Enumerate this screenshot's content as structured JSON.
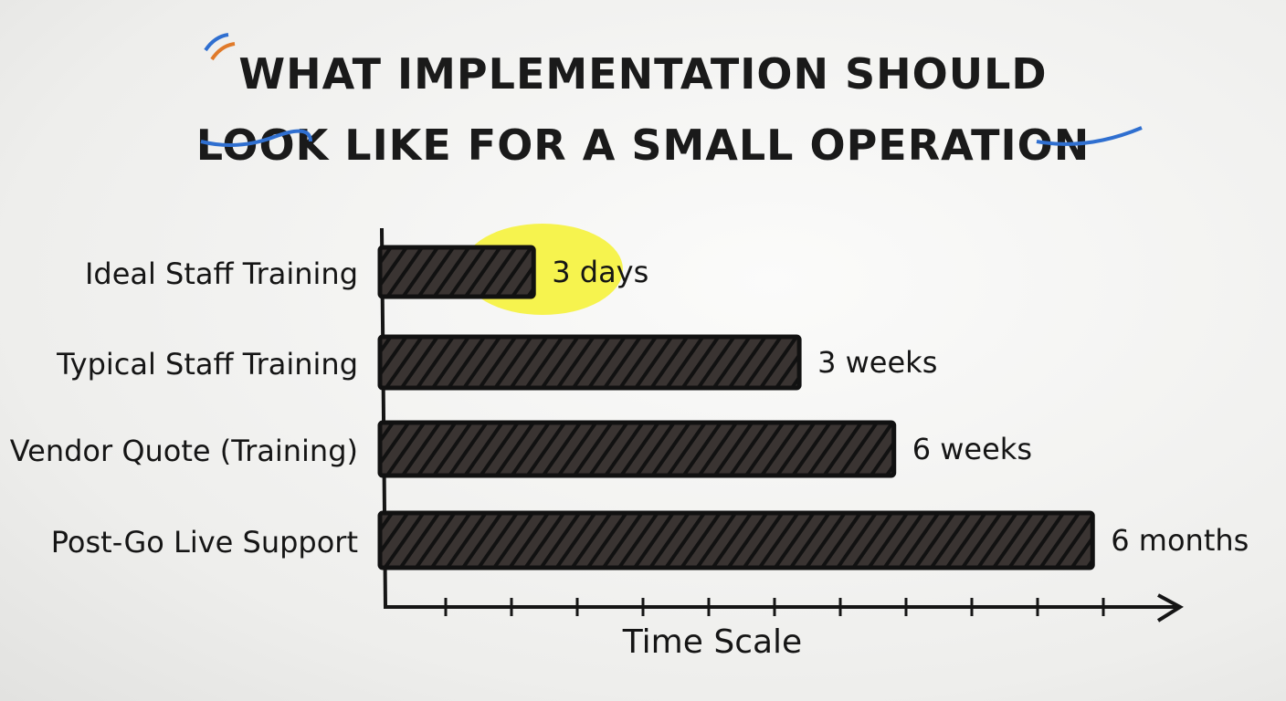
{
  "chart_data": {
    "type": "hbar",
    "title": "WHAT IMPLEMENTATION SHOULD LOOK LIKE FOR A SMALL OPERATION",
    "xlabel": "Time Scale",
    "categories": [
      "Ideal Staff Training",
      "Typical Staff Training",
      "Vendor Quote (Training)",
      "Post-Go Live Support"
    ],
    "values": [
      3,
      21,
      42,
      180
    ],
    "value_labels": [
      "3 days",
      "3 weeks",
      "6 weeks",
      "6 months"
    ],
    "color": "#2a2422",
    "xlim": [
      1,
      200
    ],
    "log_scale": true,
    "grid": false
  }
}
